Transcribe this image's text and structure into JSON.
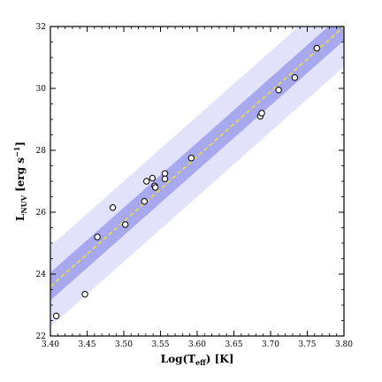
{
  "chart_data": {
    "type": "scatter",
    "xlabel": "Log(T",
    "xlabel_sub": "eff",
    "xlabel_suffix": ") [K]",
    "ylabel": "L",
    "ylabel_sub": "NUV",
    "ylabel_suffix": " [erg s",
    "ylabel_sup": "−1",
    "ylabel_end": "]",
    "xlim": [
      3.4,
      3.8
    ],
    "ylim": [
      22,
      32
    ],
    "xticks": [
      "3.40",
      "3.45",
      "3.50",
      "3.55",
      "3.60",
      "3.65",
      "3.70",
      "3.75",
      "3.80"
    ],
    "yticks": [
      "22",
      "24",
      "26",
      "28",
      "30",
      "32"
    ],
    "grid": false,
    "fit_line": {
      "style": "dashed",
      "color": "#e8e040",
      "points": [
        [
          3.4,
          23.6
        ],
        [
          3.8,
          32.0
        ]
      ]
    },
    "bands": [
      {
        "name": "outer",
        "half_width": 1.3,
        "color": "#e2e2fb"
      },
      {
        "name": "inner",
        "half_width": 0.45,
        "color": "#a8a8ee"
      }
    ],
    "points": [
      {
        "x": 3.408,
        "y": 22.65
      },
      {
        "x": 3.447,
        "y": 23.35
      },
      {
        "x": 3.464,
        "y": 25.2
      },
      {
        "x": 3.485,
        "y": 26.15
      },
      {
        "x": 3.502,
        "y": 25.6
      },
      {
        "x": 3.528,
        "y": 26.35
      },
      {
        "x": 3.531,
        "y": 27.0
      },
      {
        "x": 3.539,
        "y": 27.1
      },
      {
        "x": 3.542,
        "y": 26.85
      },
      {
        "x": 3.543,
        "y": 26.8
      },
      {
        "x": 3.556,
        "y": 27.25
      },
      {
        "x": 3.556,
        "y": 27.08
      },
      {
        "x": 3.592,
        "y": 27.75
      },
      {
        "x": 3.686,
        "y": 29.1
      },
      {
        "x": 3.688,
        "y": 29.2
      },
      {
        "x": 3.711,
        "y": 29.95
      },
      {
        "x": 3.733,
        "y": 30.35
      },
      {
        "x": 3.763,
        "y": 31.3
      }
    ]
  }
}
